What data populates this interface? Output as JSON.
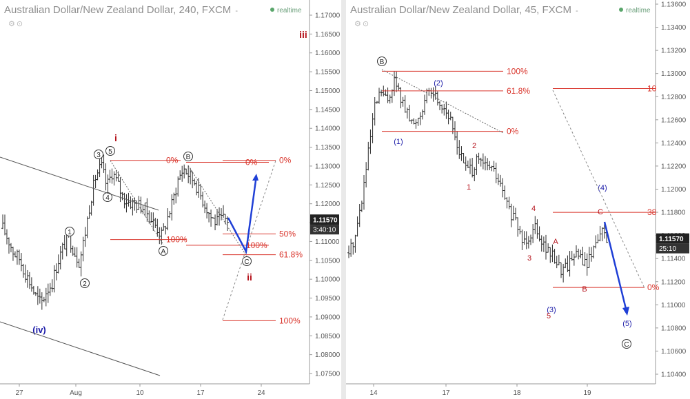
{
  "left_panel": {
    "title": "Australian Dollar/New Zealand Dollar, 240, FXCM",
    "title_arrow": "-",
    "realtime_label": "realtime",
    "current_price": "1.11570",
    "countdown": "3:40:10"
  },
  "right_panel": {
    "title": "Australian Dollar/New Zealand Dollar, 45, FXCM",
    "title_arrow": "-",
    "realtime_label": "realtime",
    "current_price": "1.11570",
    "countdown": "25:10"
  },
  "colors": {
    "wave_red": "#b5121b",
    "wave_blue": "#1a1aa8",
    "fib_line": "#d9342b",
    "projection_arrow": "#1f3fd6",
    "candle": "#2b2b2b",
    "axis_text": "#555555"
  },
  "chart_data": [
    {
      "type": "candlestick",
      "timeframe": "240",
      "ylim": [
        1.07,
        1.175
      ],
      "y_ticks": [
        "1.17000",
        "1.16500",
        "1.16000",
        "1.15500",
        "1.15000",
        "1.14500",
        "1.14000",
        "1.13500",
        "1.13000",
        "1.12500",
        "1.12000",
        "1.11500",
        "1.11000",
        "1.10500",
        "1.10000",
        "1.09500",
        "1.09000",
        "1.08500",
        "1.08000",
        "1.07500"
      ],
      "x_ticks": [
        "27",
        "Aug",
        "10",
        "17",
        "24"
      ],
      "price_path": [
        {
          "t": 0,
          "p": 1.1135
        },
        {
          "t": 1,
          "p": 1.1105
        },
        {
          "t": 2,
          "p": 1.107
        },
        {
          "t": 3,
          "p": 1.1055
        },
        {
          "t": 4,
          "p": 1.102
        },
        {
          "t": 5,
          "p": 1.099
        },
        {
          "t": 6,
          "p": 1.0955
        },
        {
          "t": 7,
          "p": 1.0935
        },
        {
          "t": 8,
          "p": 1.097
        },
        {
          "t": 9,
          "p": 1.099
        },
        {
          "t": 10,
          "p": 1.1045
        },
        {
          "t": 11,
          "p": 1.1085
        },
        {
          "t": 12,
          "p": 1.1115
        },
        {
          "t": 13,
          "p": 1.1075
        },
        {
          "t": 14,
          "p": 1.1045
        },
        {
          "t": 15,
          "p": 1.112
        },
        {
          "t": 16,
          "p": 1.121
        },
        {
          "t": 17,
          "p": 1.1275
        },
        {
          "t": 18,
          "p": 1.13
        },
        {
          "t": 19,
          "p": 1.1245
        },
        {
          "t": 20,
          "p": 1.1285
        },
        {
          "t": 21,
          "p": 1.125
        },
        {
          "t": 22,
          "p": 1.1215
        },
        {
          "t": 23,
          "p": 1.1205
        },
        {
          "t": 24,
          "p": 1.12
        },
        {
          "t": 25,
          "p": 1.1195
        },
        {
          "t": 26,
          "p": 1.1185
        },
        {
          "t": 27,
          "p": 1.116
        },
        {
          "t": 28,
          "p": 1.114
        },
        {
          "t": 29,
          "p": 1.1115
        },
        {
          "t": 30,
          "p": 1.116
        },
        {
          "t": 31,
          "p": 1.1205
        },
        {
          "t": 32,
          "p": 1.1265
        },
        {
          "t": 33,
          "p": 1.1295
        },
        {
          "t": 34,
          "p": 1.1275
        },
        {
          "t": 35,
          "p": 1.126
        },
        {
          "t": 36,
          "p": 1.1225
        },
        {
          "t": 37,
          "p": 1.1195
        },
        {
          "t": 38,
          "p": 1.1165
        },
        {
          "t": 39,
          "p": 1.115
        },
        {
          "t": 40,
          "p": 1.116
        },
        {
          "t": 41,
          "p": 1.1157
        }
      ],
      "fib_levels": [
        {
          "label": "0%",
          "price": 1.1315
        },
        {
          "label": "100%",
          "price": 1.1105
        },
        {
          "label": "0%",
          "price": 1.131
        },
        {
          "label": "100%",
          "price": 1.109
        },
        {
          "label": "0%",
          "price": 1.1315
        },
        {
          "label": "50%",
          "price": 1.112
        },
        {
          "label": "61.8%",
          "price": 1.1065
        },
        {
          "label": "100%",
          "price": 1.089
        }
      ],
      "wave_labels": [
        {
          "text": "i",
          "color": "red",
          "bold": true
        },
        {
          "text": "iii",
          "color": "red",
          "bold": true
        },
        {
          "text": "ii",
          "color": "red",
          "bold": true
        },
        {
          "text": "(iv)",
          "color": "blue",
          "bold": true
        },
        {
          "text": "1",
          "circled": true
        },
        {
          "text": "2",
          "circled": true
        },
        {
          "text": "3",
          "circled": true
        },
        {
          "text": "4",
          "circled": true
        },
        {
          "text": "5",
          "circled": true
        },
        {
          "text": "A",
          "circled": true
        },
        {
          "text": "B",
          "circled": true
        },
        {
          "text": "C",
          "circled": true
        }
      ]
    },
    {
      "type": "candlestick",
      "timeframe": "45",
      "ylim": [
        1.102,
        1.137
      ],
      "y_ticks": [
        "1.13600",
        "1.13400",
        "1.13200",
        "1.13000",
        "1.12800",
        "1.12600",
        "1.12400",
        "1.12200",
        "1.12000",
        "1.11800",
        "1.11600",
        "1.11400",
        "1.11200",
        "1.11000",
        "1.10800",
        "1.10600",
        "1.10400"
      ],
      "x_ticks": [
        "14",
        "17",
        "18",
        "19"
      ],
      "price_path": [
        {
          "t": 0,
          "p": 1.1145
        },
        {
          "t": 1,
          "p": 1.116
        },
        {
          "t": 2,
          "p": 1.119
        },
        {
          "t": 3,
          "p": 1.123
        },
        {
          "t": 4,
          "p": 1.127
        },
        {
          "t": 5,
          "p": 1.1285
        },
        {
          "t": 6,
          "p": 1.1275
        },
        {
          "t": 7,
          "p": 1.1295
        },
        {
          "t": 8,
          "p": 1.128
        },
        {
          "t": 9,
          "p": 1.1265
        },
        {
          "t": 10,
          "p": 1.1255
        },
        {
          "t": 11,
          "p": 1.1265
        },
        {
          "t": 12,
          "p": 1.128
        },
        {
          "t": 13,
          "p": 1.1285
        },
        {
          "t": 14,
          "p": 1.1275
        },
        {
          "t": 15,
          "p": 1.127
        },
        {
          "t": 16,
          "p": 1.1255
        },
        {
          "t": 17,
          "p": 1.1235
        },
        {
          "t": 18,
          "p": 1.122
        },
        {
          "t": 19,
          "p": 1.1215
        },
        {
          "t": 20,
          "p": 1.1225
        },
        {
          "t": 21,
          "p": 1.122
        },
        {
          "t": 22,
          "p": 1.122
        },
        {
          "t": 23,
          "p": 1.121
        },
        {
          "t": 24,
          "p": 1.1195
        },
        {
          "t": 25,
          "p": 1.118
        },
        {
          "t": 26,
          "p": 1.117
        },
        {
          "t": 27,
          "p": 1.1155
        },
        {
          "t": 28,
          "p": 1.116
        },
        {
          "t": 29,
          "p": 1.117
        },
        {
          "t": 30,
          "p": 1.1155
        },
        {
          "t": 31,
          "p": 1.1145
        },
        {
          "t": 32,
          "p": 1.114
        },
        {
          "t": 33,
          "p": 1.113
        },
        {
          "t": 34,
          "p": 1.1135
        },
        {
          "t": 35,
          "p": 1.1145
        },
        {
          "t": 36,
          "p": 1.114
        },
        {
          "t": 37,
          "p": 1.1135
        },
        {
          "t": 38,
          "p": 1.115
        },
        {
          "t": 39,
          "p": 1.1165
        },
        {
          "t": 40,
          "p": 1.1157
        }
      ],
      "fib_levels": [
        {
          "label": "100%",
          "price": 1.1302
        },
        {
          "label": "61.8%",
          "price": 1.1285
        },
        {
          "label": "0%",
          "price": 1.125
        },
        {
          "label": "10",
          "price": 1.1287
        },
        {
          "label": "38",
          "price": 1.118
        },
        {
          "label": "0%",
          "price": 1.1115
        }
      ],
      "wave_labels": [
        {
          "text": "B",
          "circled": true
        },
        {
          "text": "C",
          "circled": true
        },
        {
          "text": "(1)",
          "color": "blue"
        },
        {
          "text": "(2)",
          "color": "blue"
        },
        {
          "text": "(3)",
          "color": "blue"
        },
        {
          "text": "(4)",
          "color": "blue"
        },
        {
          "text": "(5)",
          "color": "blue"
        },
        {
          "text": "1",
          "color": "red"
        },
        {
          "text": "2",
          "color": "red"
        },
        {
          "text": "3",
          "color": "red"
        },
        {
          "text": "4",
          "color": "red"
        },
        {
          "text": "5",
          "color": "red"
        },
        {
          "text": "A",
          "color": "red"
        },
        {
          "text": "B",
          "color": "red"
        },
        {
          "text": "C",
          "color": "red"
        }
      ]
    }
  ]
}
